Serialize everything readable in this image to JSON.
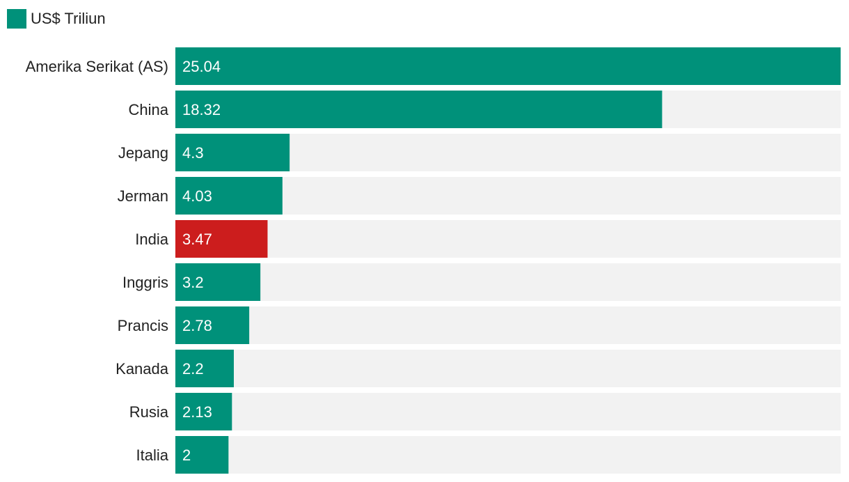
{
  "legend": {
    "label": "US$ Triliun",
    "color": "#00917a"
  },
  "colors": {
    "bar": "#00917a",
    "highlight": "#cc1d1d",
    "track": "#f2f2f2"
  },
  "chart_data": {
    "type": "bar",
    "orientation": "horizontal",
    "categories": [
      "Amerika Serikat (AS)",
      "China",
      "Jepang",
      "Jerman",
      "India",
      "Inggris",
      "Prancis",
      "Kanada",
      "Rusia",
      "Italia"
    ],
    "series": [
      {
        "name": "US$ Triliun",
        "values": [
          25.04,
          18.32,
          4.3,
          4.03,
          3.47,
          3.2,
          2.78,
          2.2,
          2.13,
          2
        ]
      }
    ],
    "value_labels": [
      "25.04",
      "18.32",
      "4.3",
      "4.03",
      "3.47",
      "3.2",
      "2.78",
      "2.2",
      "2.13",
      "2"
    ],
    "highlight_category": "India",
    "xlim": [
      0,
      25.04
    ],
    "grid": false,
    "legend_position": "top-left"
  }
}
